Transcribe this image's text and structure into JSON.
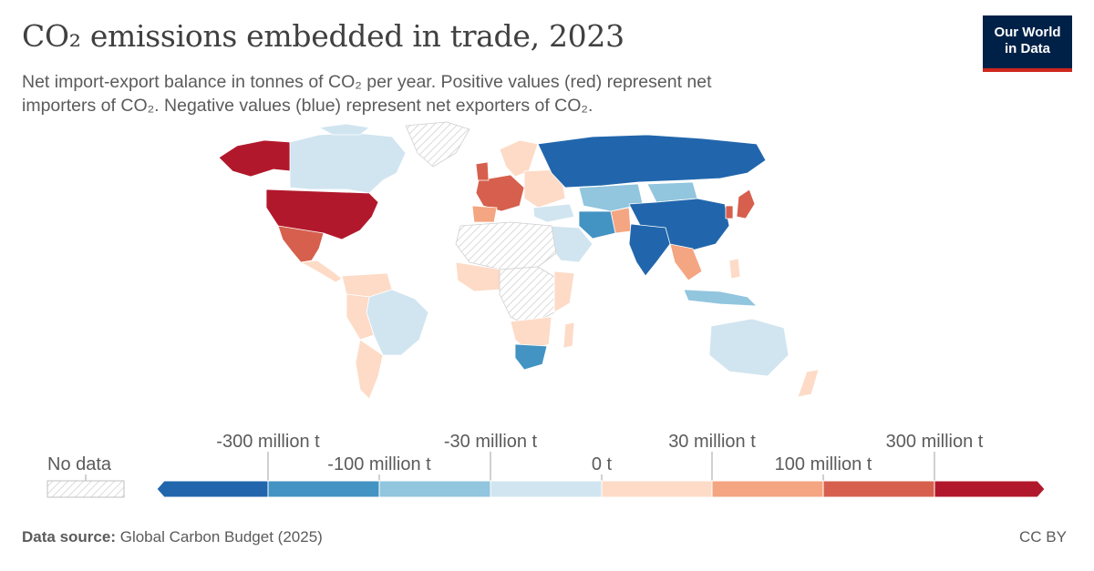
{
  "header": {
    "title": "CO₂ emissions embedded in trade, 2023",
    "subtitle_line1": "Net import-export balance in tonnes of CO₂ per year. Positive values (red) represent net",
    "subtitle_line2": "importers of CO₂. Negative values (blue) represent net exporters of CO₂."
  },
  "logo": {
    "line1": "Our World",
    "line2": "in Data"
  },
  "legend": {
    "no_data_label": "No data",
    "top_labels": [
      "-300 million t",
      "-30 million t",
      "30 million t",
      "300 million t"
    ],
    "bottom_labels": [
      "-100 million t",
      "0 t",
      "100 million t"
    ],
    "bins": [
      {
        "color": "#2166ac"
      },
      {
        "color": "#4393c3"
      },
      {
        "color": "#92c5de"
      },
      {
        "color": "#d1e5f0"
      },
      {
        "color": "#fddbc7"
      },
      {
        "color": "#f4a582"
      },
      {
        "color": "#d6604d"
      },
      {
        "color": "#b2182b"
      }
    ]
  },
  "footer": {
    "source_label": "Data source:",
    "source_value": "Global Carbon Budget (2025)",
    "license": "CC BY"
  }
}
